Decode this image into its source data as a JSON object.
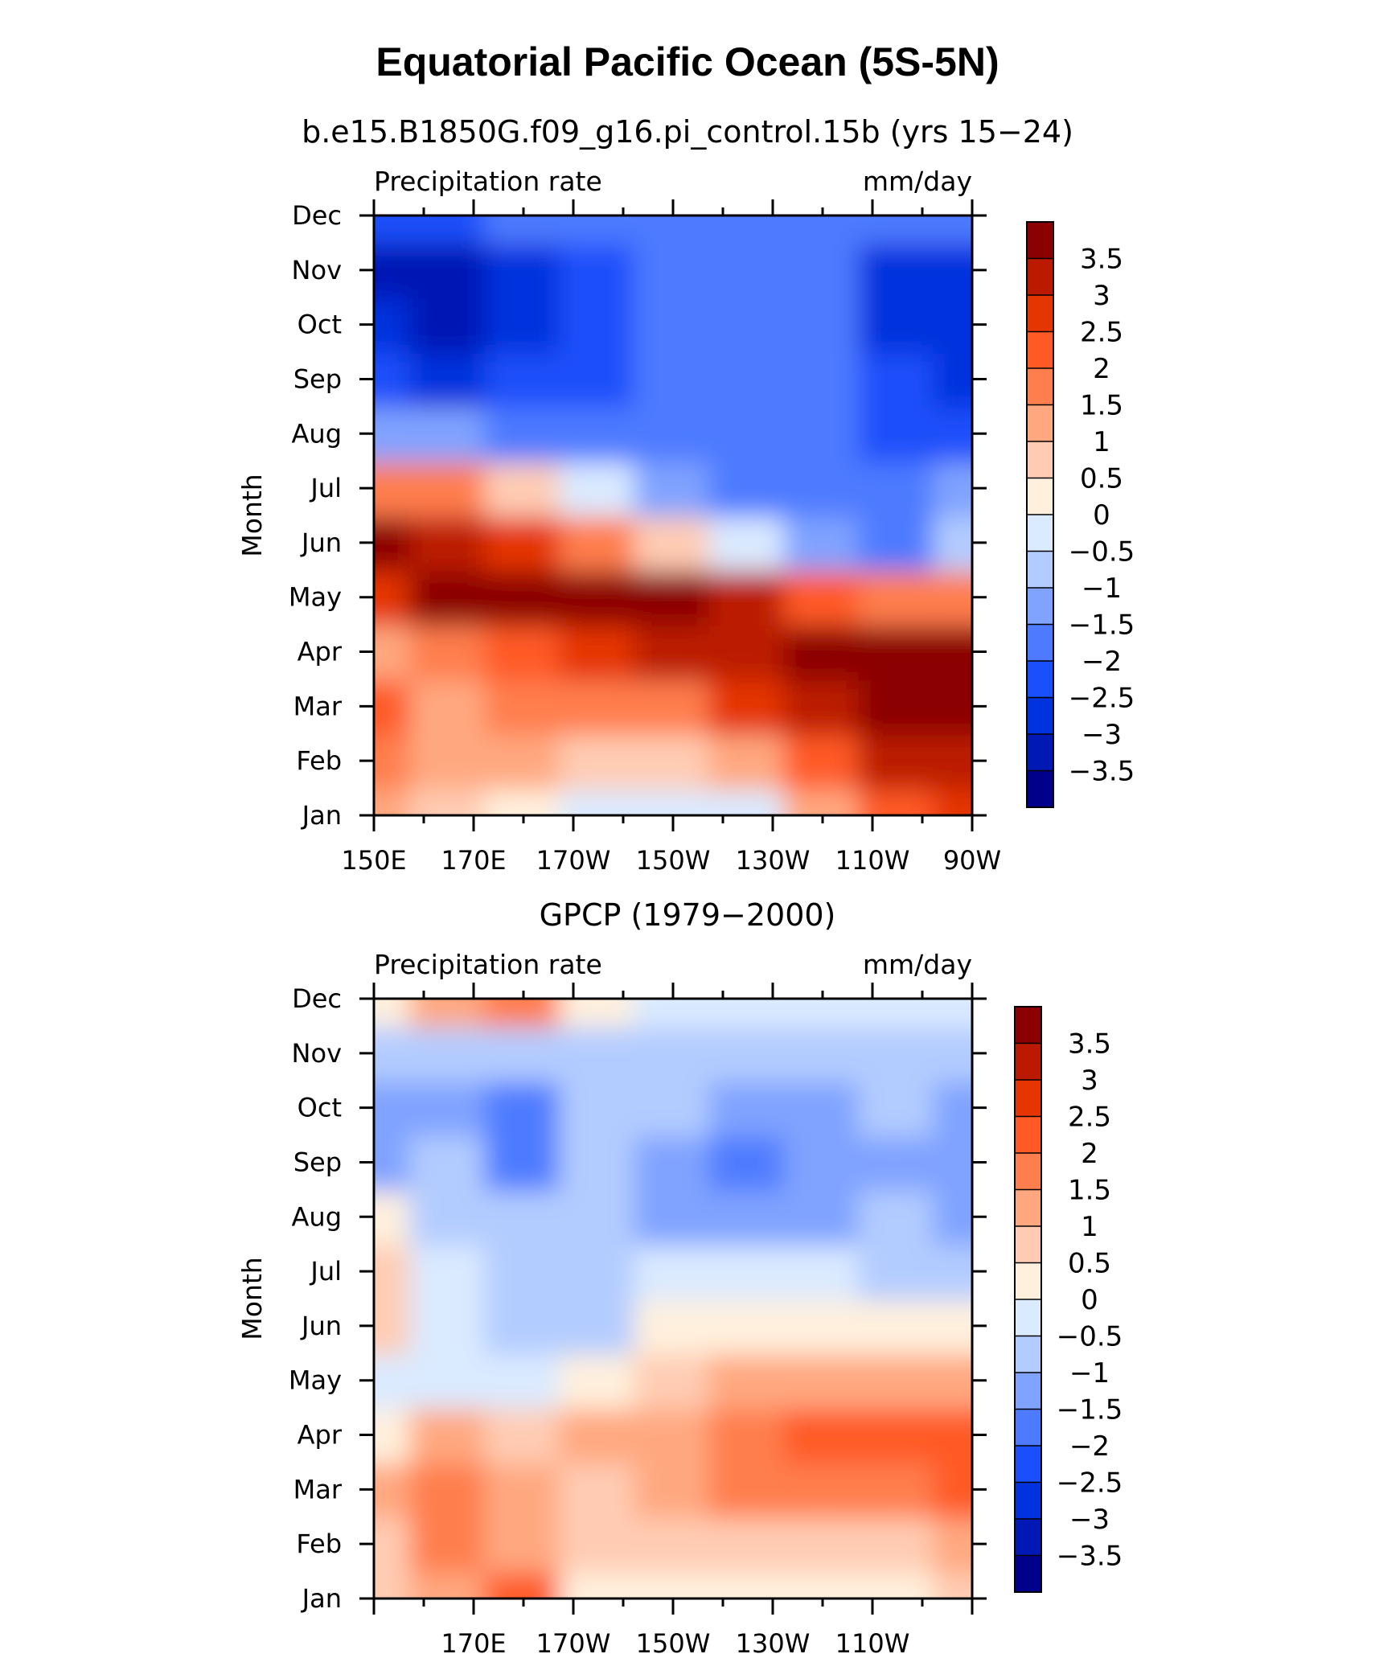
{
  "title": "Equatorial Pacific Ocean (5S-5N)",
  "colors": [
    "#00008b",
    "#0019b4",
    "#0033dd",
    "#1a50fa",
    "#4d7aff",
    "#80a3ff",
    "#b3ccff",
    "#daeaff",
    "#fff0dd",
    "#ffccb3",
    "#ffa880",
    "#ff7e4d",
    "#ff5a26",
    "#e53500",
    "#bb1a00",
    "#8b0000"
  ],
  "chart_data": [
    {
      "type": "heatmap",
      "subtitle": "b.e15.B1850G.f09_g16.pi_control.15b (yrs 15−24)",
      "left_label": "Precipitation rate",
      "right_label": "mm/day",
      "ylabel": "Month",
      "xlabel": "",
      "x_ticks": [
        "150E",
        "170E",
        "170W",
        "150W",
        "130W",
        "110W",
        "90W"
      ],
      "y_ticks": [
        "Jan",
        "Feb",
        "Mar",
        "Apr",
        "May",
        "Jun",
        "Jul",
        "Aug",
        "Sep",
        "Oct",
        "Nov",
        "Dec"
      ],
      "colorbar_labels": [
        "3.5",
        "3",
        "2.5",
        "2",
        "1.5",
        "1",
        "0.5",
        "0",
        "−0.5",
        "−1",
        "−1.5",
        "−2",
        "−2.5",
        "−3",
        "−3.5"
      ],
      "x_longitudes": [
        150,
        165,
        180,
        195,
        210,
        225,
        240,
        255,
        270
      ],
      "values": [
        [
          1.3,
          0.7,
          0.3,
          -0.2,
          -0.4,
          -0.2,
          1.2,
          2.3,
          2.8
        ],
        [
          1.5,
          1.1,
          1.0,
          0.5,
          0.5,
          1.0,
          2.0,
          3.0,
          3.3
        ],
        [
          2.0,
          1.0,
          1.5,
          1.5,
          1.8,
          2.5,
          3.2,
          3.8,
          3.8
        ],
        [
          1.3,
          1.8,
          2.3,
          2.5,
          3.0,
          3.2,
          4.0,
          4.0,
          4.0
        ],
        [
          2.5,
          3.8,
          3.8,
          3.8,
          3.6,
          3.0,
          2.2,
          1.5,
          1.5
        ],
        [
          3.5,
          3.0,
          2.5,
          1.5,
          0.5,
          -0.3,
          -1.5,
          -2.0,
          -0.8
        ],
        [
          1.5,
          1.5,
          0.8,
          -0.5,
          -1.2,
          -1.7,
          -2.0,
          -2.0,
          -1.5
        ],
        [
          -1.2,
          -1.5,
          -2.0,
          -2.0,
          -2.0,
          -2.0,
          -2.0,
          -2.3,
          -2.4
        ],
        [
          -2.5,
          -2.8,
          -2.5,
          -2.2,
          -2.0,
          -2.0,
          -2.0,
          -2.5,
          -2.8
        ],
        [
          -3.0,
          -3.2,
          -3.0,
          -2.2,
          -2.0,
          -2.0,
          -2.0,
          -2.8,
          -3.0
        ],
        [
          -3.3,
          -3.2,
          -2.7,
          -2.2,
          -2.0,
          -2.0,
          -2.0,
          -2.6,
          -3.0
        ],
        [
          -2.2,
          -2.2,
          -2.0,
          -2.0,
          -2.0,
          -2.0,
          -2.0,
          -1.8,
          -1.7
        ]
      ]
    },
    {
      "type": "heatmap",
      "subtitle": "GPCP (1979−2000)",
      "left_label": "Precipitation rate",
      "right_label": "mm/day",
      "ylabel": "Month",
      "xlabel": "",
      "x_ticks": [
        "170E",
        "170W",
        "150W",
        "130W",
        "110W"
      ],
      "y_ticks": [
        "Jan",
        "Feb",
        "Mar",
        "Apr",
        "May",
        "Jun",
        "Jul",
        "Aug",
        "Sep",
        "Oct",
        "Nov",
        "Dec"
      ],
      "colorbar_labels": [
        "3.5",
        "3",
        "2.5",
        "2",
        "1.5",
        "1",
        "0.5",
        "0",
        "−0.5",
        "−1",
        "−1.5",
        "−2",
        "−2.5",
        "−3",
        "−3.5"
      ],
      "x_longitudes": [
        150,
        165,
        180,
        195,
        210,
        225,
        240,
        255,
        270
      ],
      "values": [
        [
          0.8,
          1.3,
          2.0,
          0.3,
          0.2,
          0.2,
          0.1,
          0.2,
          0.7
        ],
        [
          0.8,
          1.5,
          1.2,
          0.5,
          0.6,
          0.6,
          0.8,
          0.9,
          1.3
        ],
        [
          1.0,
          1.5,
          1.4,
          0.8,
          1.3,
          1.5,
          1.8,
          1.8,
          2.0
        ],
        [
          0.2,
          1.0,
          0.5,
          1.0,
          1.3,
          1.6,
          2.0,
          2.0,
          2.0
        ],
        [
          -0.2,
          -0.5,
          -0.5,
          0.2,
          0.8,
          1.0,
          1.0,
          1.0,
          1.0
        ],
        [
          0.5,
          -0.5,
          -1.0,
          -0.6,
          0.3,
          0.3,
          0.2,
          0.1,
          0.0
        ],
        [
          0.8,
          -0.5,
          -0.8,
          -0.8,
          -0.5,
          -0.3,
          -0.5,
          -0.8,
          -0.7
        ],
        [
          0.3,
          -0.8,
          -1.0,
          -0.8,
          -1.5,
          -1.5,
          -1.5,
          -1.0,
          -1.2
        ],
        [
          -1.5,
          -1.0,
          -2.0,
          -1.0,
          -1.5,
          -1.6,
          -1.5,
          -1.2,
          -1.3
        ],
        [
          -1.2,
          -1.4,
          -2.0,
          -1.0,
          -1.0,
          -1.5,
          -1.3,
          -1.0,
          -1.5
        ],
        [
          -1.0,
          -1.0,
          -0.8,
          -0.8,
          -0.8,
          -0.9,
          -0.8,
          -0.7,
          -0.8
        ],
        [
          0.1,
          1.0,
          1.5,
          0.3,
          -0.2,
          -0.3,
          -0.4,
          -0.5,
          -0.5
        ]
      ]
    }
  ]
}
